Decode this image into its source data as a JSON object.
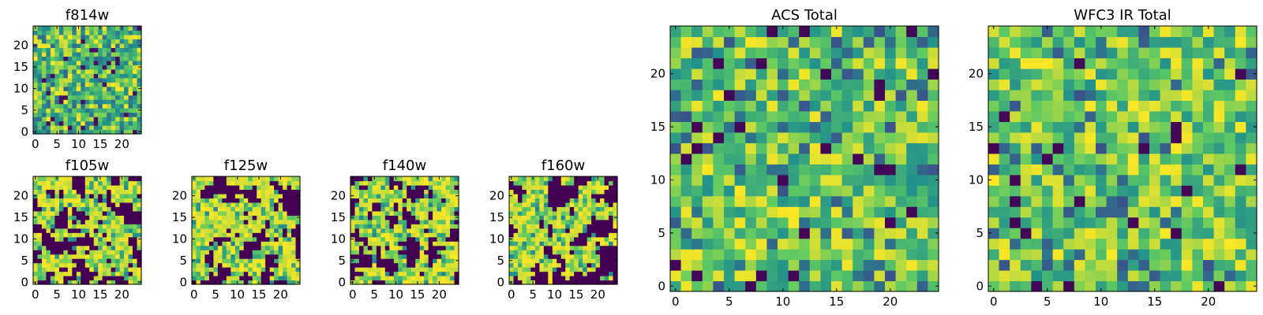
{
  "chart_data": [
    {
      "type": "heatmap",
      "id": "f814w",
      "title": "f814w",
      "colormap": "viridis",
      "pattern": "noise",
      "grid_size": [
        25,
        25
      ],
      "xlim": [
        0,
        24
      ],
      "ylim": [
        0,
        24
      ],
      "xticks": [
        "0",
        "5",
        "10",
        "15",
        "20"
      ],
      "yticks": [
        "0",
        "5",
        "10",
        "15",
        "20"
      ],
      "seed": 11
    },
    {
      "type": "heatmap",
      "id": "f105w",
      "title": "f105w",
      "colormap": "viridis",
      "pattern": "blobs",
      "grid_size": [
        25,
        25
      ],
      "xlim": [
        0,
        24
      ],
      "ylim": [
        0,
        24
      ],
      "xticks": [
        "0",
        "5",
        "10",
        "15",
        "20"
      ],
      "yticks": [
        "0",
        "5",
        "10",
        "15",
        "20"
      ],
      "seed": 23
    },
    {
      "type": "heatmap",
      "id": "f125w",
      "title": "f125w",
      "colormap": "viridis",
      "pattern": "blobs",
      "grid_size": [
        25,
        25
      ],
      "xlim": [
        0,
        24
      ],
      "ylim": [
        0,
        24
      ],
      "xticks": [
        "0",
        "5",
        "10",
        "15",
        "20"
      ],
      "yticks": [
        "0",
        "5",
        "10",
        "15",
        "20"
      ],
      "seed": 37
    },
    {
      "type": "heatmap",
      "id": "f140w",
      "title": "f140w",
      "colormap": "viridis",
      "pattern": "blobs",
      "grid_size": [
        25,
        25
      ],
      "xlim": [
        0,
        24
      ],
      "ylim": [
        0,
        24
      ],
      "xticks": [
        "0",
        "5",
        "10",
        "15",
        "20"
      ],
      "yticks": [
        "0",
        "5",
        "10",
        "15",
        "20"
      ],
      "seed": 41
    },
    {
      "type": "heatmap",
      "id": "f160w",
      "title": "f160w",
      "colormap": "viridis",
      "pattern": "blobs",
      "grid_size": [
        25,
        25
      ],
      "xlim": [
        0,
        24
      ],
      "ylim": [
        0,
        24
      ],
      "xticks": [
        "0",
        "5",
        "10",
        "15",
        "20"
      ],
      "yticks": [
        "0",
        "5",
        "10",
        "15",
        "20"
      ],
      "seed": 53
    },
    {
      "type": "heatmap",
      "id": "acs-total",
      "title": "ACS Total",
      "colormap": "viridis",
      "pattern": "total",
      "grid_size": [
        25,
        25
      ],
      "xlim": [
        0,
        24
      ],
      "ylim": [
        0,
        24
      ],
      "xticks": [
        "0",
        "5",
        "10",
        "15",
        "20"
      ],
      "yticks": [
        "0",
        "5",
        "10",
        "15",
        "20"
      ],
      "seed": 67
    },
    {
      "type": "heatmap",
      "id": "wfc3-ir-total",
      "title": "WFC3 IR Total",
      "colormap": "viridis",
      "pattern": "total",
      "grid_size": [
        25,
        25
      ],
      "xlim": [
        0,
        24
      ],
      "ylim": [
        0,
        24
      ],
      "xticks": [
        "0",
        "5",
        "10",
        "15",
        "20"
      ],
      "yticks": [
        "0",
        "5",
        "10",
        "15",
        "20"
      ],
      "seed": 79
    }
  ],
  "colors": {
    "viridis_stops": [
      "#440154",
      "#3b528b",
      "#21918c",
      "#5ec962",
      "#fde725"
    ],
    "axis": "#000000",
    "background": "#ffffff"
  }
}
